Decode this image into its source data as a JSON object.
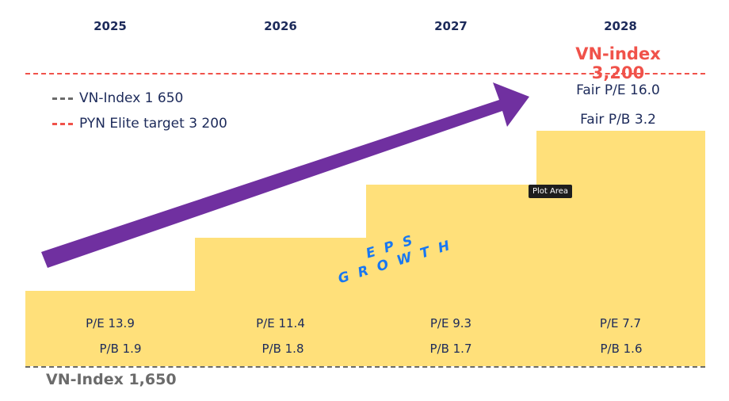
{
  "chart_data": {
    "type": "bar",
    "categories": [
      "2025",
      "2026",
      "2027",
      "2028"
    ],
    "pe_labels": [
      "P/E 13.9",
      "P/E 11.4",
      "P/E 9.3",
      "P/E 7.7"
    ],
    "pb_labels": [
      "P/B 1.9",
      "P/B 1.8",
      "P/B 1.7",
      "P/B 1.6"
    ],
    "legend": [
      {
        "label": "VN-Index 1 650",
        "color": "#6b6b6b"
      },
      {
        "label": "PYN Elite target 3 200",
        "color": "#f0524a"
      }
    ],
    "target_label": "VN-index 3,200",
    "base_label": "VN-Index 1,650",
    "fair_pe": "Fair P/E 16.0",
    "fair_pb": "Fair P/B 3.2",
    "arrow_text": "EPS GROWTH",
    "tooltip": "Plot Area",
    "colors": {
      "bars": "#ffe07a",
      "arrow": "#7030a0",
      "text": "#1c2a5a",
      "target": "#f0524a",
      "base": "#6b6b6b",
      "eps": "#1877f2"
    }
  }
}
